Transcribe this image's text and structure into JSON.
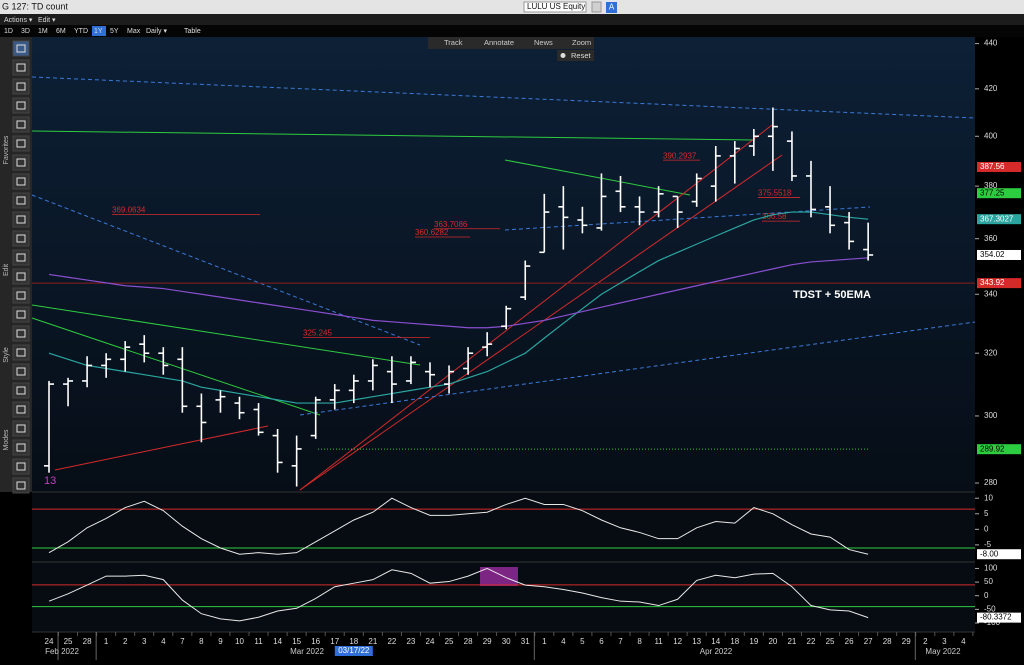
{
  "header": {
    "title": "G 127: TD count",
    "ticker": "LULU US Equity",
    "ticker_badge": "A",
    "menus": [
      "Actions ▾",
      "Edit ▾"
    ]
  },
  "periods": [
    "1D",
    "3D",
    "1M",
    "6M",
    "YTD",
    "1Y",
    "5Y",
    "Max",
    "Daily ▾",
    "Table"
  ],
  "active_period_index": 5,
  "chart_toolbar": [
    "Track",
    "Annotate",
    "News",
    "Zoom"
  ],
  "reset": "Reset",
  "side_labels": [
    "Favorites",
    "Edit",
    "Style",
    "Modes"
  ],
  "chart_data": [
    {
      "type": "ohlc",
      "color": "#ffffff",
      "log": true,
      "categories": [
        "24",
        "25",
        "28",
        "1",
        "2",
        "3",
        "4",
        "7",
        "8",
        "9",
        "10",
        "11",
        "14",
        "15",
        "16",
        "17",
        "18",
        "21",
        "22",
        "23",
        "24",
        "25",
        "28",
        "29",
        "30",
        "31",
        "1",
        "4",
        "5",
        "6",
        "7",
        "8",
        "11",
        "12",
        "13",
        "14",
        "18",
        "19",
        "20",
        "21",
        "22",
        "25",
        "26",
        "27",
        "28",
        "29",
        "2",
        "3",
        "4"
      ],
      "months": [
        "Feb 2022",
        "Mar 2022",
        "Apr 2022",
        "May 2022"
      ],
      "crosshair_date": "03/17/22",
      "open": [
        285,
        310,
        311,
        316,
        318,
        323,
        320,
        318,
        303,
        305,
        304,
        302,
        294,
        285,
        294,
        305,
        308,
        311,
        314,
        311,
        314,
        310,
        315,
        322,
        329,
        339,
        355,
        372,
        367,
        364,
        378,
        372,
        370,
        376,
        374,
        380,
        392,
        396,
        400,
        398,
        384,
        372,
        366,
        356,
        null,
        null,
        null,
        null,
        null
      ],
      "high": [
        311,
        312,
        319,
        320,
        324,
        326,
        322,
        322,
        307,
        308,
        306,
        304,
        296,
        294,
        306,
        310,
        313,
        318,
        319,
        319,
        317,
        316,
        322,
        327,
        336,
        352,
        377,
        380,
        372,
        385,
        384,
        376,
        380,
        376,
        385,
        396,
        398,
        403,
        412,
        402,
        390,
        380,
        370,
        366,
        null,
        null,
        null,
        null,
        null
      ],
      "low": [
        283,
        303,
        309,
        312,
        314,
        317,
        313,
        301,
        292,
        301,
        299,
        294,
        283,
        279,
        293,
        302,
        304,
        308,
        304,
        310,
        309,
        307,
        313,
        319,
        328,
        338,
        355,
        356,
        362,
        363,
        370,
        365,
        368,
        364,
        372,
        374,
        381,
        392,
        386,
        382,
        368,
        362,
        356,
        352,
        null,
        null,
        null,
        null,
        null
      ],
      "close": [
        310,
        311,
        316,
        318,
        322,
        320,
        316,
        303,
        298,
        306,
        301,
        295,
        286,
        290,
        305,
        308,
        311,
        316,
        310,
        317,
        313,
        314,
        320,
        323,
        335,
        350,
        370,
        368,
        365,
        376,
        372,
        370,
        377,
        370,
        383,
        392,
        395,
        400,
        404,
        384,
        371,
        365,
        359,
        354.02,
        null,
        null,
        null,
        null,
        null
      ],
      "overlays": [
        {
          "color": "#2aa6a0",
          "values": [
            320,
            318,
            316,
            315,
            314,
            313,
            312,
            311,
            309,
            308,
            307,
            306,
            305,
            304,
            304,
            304,
            305,
            306,
            307,
            308,
            309,
            310,
            312,
            314,
            317,
            320,
            325,
            330,
            335,
            340,
            344,
            348,
            352,
            355,
            358,
            361,
            364,
            367,
            369,
            370,
            370,
            369,
            368,
            367.3027,
            null,
            null,
            null,
            null,
            null
          ]
        },
        {
          "color": "#8a4fd0",
          "values": [
            347,
            346,
            345,
            344,
            343,
            342.5,
            342,
            341,
            340,
            339,
            338,
            337,
            336,
            335,
            334,
            333,
            332,
            331,
            330.5,
            330,
            329.5,
            329,
            328.5,
            328.5,
            329,
            330,
            331,
            332.5,
            334,
            335.5,
            337,
            338.5,
            340,
            341.5,
            343,
            344.5,
            346,
            347.5,
            349,
            350.5,
            351.5,
            352,
            352.5,
            353,
            null,
            null,
            null,
            null,
            null
          ]
        }
      ],
      "ylim": [
        278,
        443
      ],
      "yticks": [
        280,
        300,
        320,
        340,
        360,
        380,
        400,
        420,
        440
      ],
      "price_tags": [
        {
          "value": 387.56,
          "color": "#d42a2a"
        },
        {
          "value": 377.25,
          "color": "#2ecc40"
        },
        {
          "value": 367.3027,
          "color": "#2aa6a0"
        },
        {
          "value": 354.02,
          "color": "#ffffff"
        },
        {
          "value": 343.92,
          "color": "#d42a2a"
        },
        {
          "value": 289.92,
          "color": "#2ecc40"
        }
      ],
      "levels": [
        {
          "value": 369.0634,
          "color": "#d42a2a"
        },
        {
          "value": 363.7086,
          "color": "#d42a2a"
        },
        {
          "value": 360.6282,
          "color": "#d42a2a"
        },
        {
          "value": 325.245,
          "color": "#d42a2a"
        },
        {
          "value": 390.2937,
          "color": "#d42a2a"
        },
        {
          "value": 375.5518,
          "color": "#d42a2a"
        },
        {
          "value": 366.58,
          "color": "#d42a2a"
        }
      ],
      "annotations": [
        {
          "text": "TDST + 50EMA",
          "color": "#ffffff"
        },
        {
          "text": "13",
          "color": "#c43cc4"
        }
      ]
    },
    {
      "type": "line",
      "color": "#e8e8e8",
      "values": [
        -7.5,
        -4,
        0.5,
        3.5,
        7,
        9,
        6,
        1,
        -3,
        -6,
        -8,
        -7.5,
        -8,
        -7.5,
        -4,
        -0.5,
        3,
        5.5,
        10,
        7,
        4.5,
        4.5,
        5,
        5.5,
        8,
        10,
        8,
        8,
        6,
        3,
        0.5,
        -1,
        -3,
        -3,
        0.5,
        2.5,
        2,
        7,
        5,
        1.5,
        -1.5,
        -2.5,
        -6.5,
        -8,
        null,
        null,
        null,
        null,
        null
      ],
      "ylim": [
        -10.5,
        12
      ],
      "yticks": [
        10,
        5,
        0,
        -5
      ],
      "upper": 6.5,
      "upper_color": "#d42a2a",
      "lower": -6,
      "lower_color": "#2ecc40",
      "last_tag": {
        "value": -8,
        "label": "-8.00"
      }
    },
    {
      "type": "line",
      "color": "#e8e8e8",
      "values": [
        -20,
        7,
        39,
        72,
        72,
        75,
        59,
        -16,
        -66,
        -85,
        -92,
        -79,
        -56,
        -46,
        -10,
        33,
        46,
        59,
        95,
        82,
        46,
        52,
        72,
        100,
        66,
        39,
        33,
        23,
        10,
        -7,
        -20,
        -23,
        -36,
        -13,
        56,
        75,
        66,
        79,
        82,
        33,
        -36,
        -52,
        -56,
        -80.3372,
        null,
        null,
        null,
        null,
        null
      ],
      "ylim": [
        -133,
        120
      ],
      "yticks": [
        100,
        50,
        0,
        -50,
        -100
      ],
      "upper": 40,
      "upper_color": "#d42a2a",
      "lower": -40,
      "lower_color": "#2ecc40",
      "last_tag": -80.3372
    }
  ]
}
